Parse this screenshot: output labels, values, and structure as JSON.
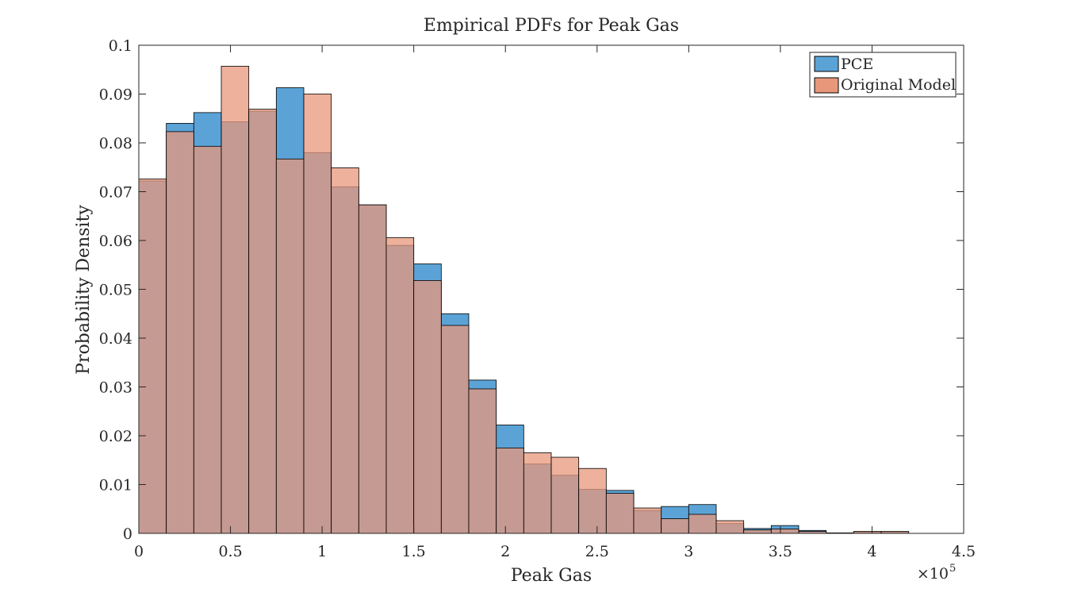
{
  "chart_data": {
    "type": "bar",
    "title": "Empirical PDFs for Peak Gas",
    "xlabel": "Peak Gas",
    "ylabel": "Probability Density",
    "x_exponent_label": "×10",
    "x_exponent_power": "5",
    "xlim": [
      0,
      4.5
    ],
    "ylim": [
      0,
      0.1
    ],
    "x_scale_factor": 100000,
    "xticks": [
      0,
      0.5,
      1,
      1.5,
      2,
      2.5,
      3,
      3.5,
      4,
      4.5
    ],
    "xtick_labels": [
      "0",
      "0.5",
      "1",
      "1.5",
      "2",
      "2.5",
      "3",
      "3.5",
      "4",
      "4.5"
    ],
    "yticks": [
      0,
      0.01,
      0.02,
      0.03,
      0.04,
      0.05,
      0.06,
      0.07,
      0.08,
      0.09,
      0.1
    ],
    "ytick_labels": [
      "0",
      "0.01",
      "0.02",
      "0.03",
      "0.04",
      "0.05",
      "0.06",
      "0.07",
      "0.08",
      "0.09",
      "0.1"
    ],
    "grid": false,
    "legend_position": "top-right",
    "bin_edges": [
      0,
      0.15,
      0.3,
      0.45,
      0.6,
      0.75,
      0.9,
      1.05,
      1.2,
      1.35,
      1.5,
      1.65,
      1.8,
      1.95,
      2.1,
      2.25,
      2.4,
      2.55,
      2.7,
      2.85,
      3.0,
      3.15,
      3.3,
      3.45,
      3.6,
      3.75,
      3.9,
      4.05,
      4.2
    ],
    "series": [
      {
        "name": "PCE",
        "color": "#0072BD",
        "fill": "#5BA3D6",
        "values": [
          0.0722,
          0.084,
          0.0862,
          0.0843,
          0.0865,
          0.0913,
          0.078,
          0.071,
          0.0673,
          0.059,
          0.0552,
          0.045,
          0.0314,
          0.0222,
          0.0142,
          0.0119,
          0.009,
          0.0088,
          0.0047,
          0.0055,
          0.0059,
          0.002,
          0.001,
          0.0016,
          0.0006,
          0.0001,
          0.0003,
          0.0003
        ]
      },
      {
        "name": "Original Model",
        "color": "#D95319",
        "fill": "#E8977B",
        "values": [
          0.0726,
          0.0823,
          0.0793,
          0.0957,
          0.0869,
          0.0767,
          0.09,
          0.0749,
          0.0673,
          0.0606,
          0.0518,
          0.0426,
          0.0296,
          0.0175,
          0.0165,
          0.0156,
          0.0133,
          0.0082,
          0.0052,
          0.003,
          0.0039,
          0.0026,
          0.0007,
          0.0009,
          0.0004,
          0.0001,
          0.0004,
          0.0004
        ]
      }
    ]
  }
}
